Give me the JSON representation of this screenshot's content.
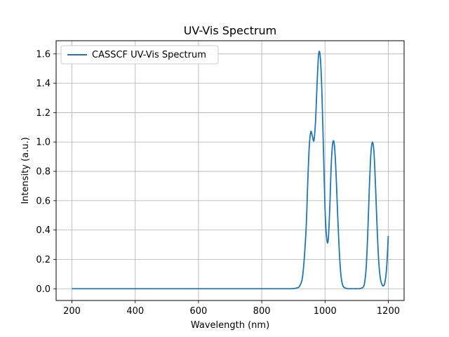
{
  "chart_data": {
    "type": "line",
    "title": "UV-Vis Spectrum",
    "xlabel": "Wavelength (nm)",
    "ylabel": "Intensity (a.u.)",
    "xlim": [
      150,
      1250
    ],
    "ylim": [
      -0.08,
      1.69
    ],
    "xticks": [
      200,
      400,
      600,
      800,
      1000,
      1200
    ],
    "yticks": [
      0.0,
      0.2,
      0.4,
      0.6,
      0.8,
      1.0,
      1.2,
      1.4,
      1.6
    ],
    "grid": true,
    "legend_position": "top-left",
    "series": [
      {
        "name": "CASSCF UV-Vis Spectrum",
        "color": "#1f77b4",
        "x": [
          200,
          300,
          400,
          500,
          600,
          700,
          800,
          880,
          900,
          910,
          920,
          930,
          940,
          945,
          950,
          955,
          960,
          965,
          970,
          975,
          980,
          985,
          990,
          995,
          1000,
          1005,
          1010,
          1015,
          1020,
          1025,
          1030,
          1035,
          1040,
          1045,
          1050,
          1055,
          1060,
          1070,
          1080,
          1090,
          1100,
          1110,
          1120,
          1125,
          1130,
          1135,
          1140,
          1145,
          1150,
          1155,
          1160,
          1165,
          1170,
          1175,
          1180,
          1185,
          1190,
          1195,
          1200
        ],
        "y": [
          0,
          0,
          0,
          0,
          0,
          0,
          0,
          0,
          0.001,
          0.005,
          0.02,
          0.1,
          0.4,
          0.7,
          0.96,
          1.07,
          1.04,
          1.01,
          1.14,
          1.4,
          1.6,
          1.58,
          1.35,
          0.95,
          0.55,
          0.35,
          0.33,
          0.55,
          0.86,
          1.0,
          0.97,
          0.78,
          0.5,
          0.26,
          0.1,
          0.03,
          0.01,
          0.001,
          0,
          0,
          0,
          0.001,
          0.01,
          0.04,
          0.14,
          0.37,
          0.68,
          0.92,
          1.0,
          0.92,
          0.68,
          0.4,
          0.18,
          0.07,
          0.03,
          0.02,
          0.05,
          0.15,
          0.36
        ]
      }
    ]
  }
}
